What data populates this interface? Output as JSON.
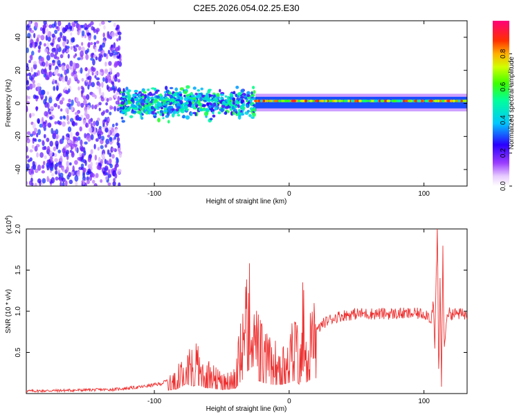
{
  "title": "C2E5.2026.054.02.25.E30",
  "chart_data": [
    {
      "type": "heatmap",
      "name": "spectrogram",
      "xlabel": "Height of straight line (km)",
      "ylabel": "Frequency (Hz)",
      "xlim": [
        -195,
        132
      ],
      "ylim": [
        -50,
        50
      ],
      "xticks": [
        -100,
        0,
        100
      ],
      "yticks": [
        -40,
        -20,
        0,
        20,
        40
      ],
      "grid": false,
      "colorbar": {
        "label": "Normalized spectral amplitude",
        "range": [
          0,
          1
        ],
        "ticks": [
          "0.0",
          "0.2",
          "0.4",
          "0.6",
          "0.8"
        ],
        "tick_values": [
          0,
          0.2,
          0.4,
          0.6,
          0.8
        ]
      },
      "description_segments": [
        {
          "x_range": [
            -195,
            -125
          ],
          "freq_spread": [
            -50,
            50
          ],
          "amplitude": [
            0.05,
            0.3
          ],
          "pattern": "scattered noise"
        },
        {
          "x_range": [
            -125,
            -25
          ],
          "freq_spread": [
            -12,
            12
          ],
          "amplitude": [
            0.2,
            0.6
          ],
          "pattern": "clustered blobs"
        },
        {
          "x_range": [
            -25,
            132
          ],
          "freq_center": 1.5,
          "freq_spread": [
            -3,
            4
          ],
          "amplitude": [
            0.4,
            0.95
          ],
          "pattern": "narrow line"
        }
      ]
    },
    {
      "type": "line",
      "name": "snr",
      "xlabel": "Height of straight line (km)",
      "ylabel": "SNR (10 * v/v)",
      "y_multiplier_label": "(x10",
      "y_multiplier_exp": "4",
      "y_multiplier_close": ")",
      "xlim": [
        -195,
        132
      ],
      "ylim": [
        0,
        20000
      ],
      "xticks": [
        -100,
        0,
        100
      ],
      "yticks": [
        5000,
        10000,
        15000,
        20000
      ],
      "ytick_labels": [
        "0.5",
        "1.0",
        "1.5",
        "2.0"
      ],
      "color": "#ee3030",
      "series": [
        {
          "name": "SNR",
          "x": [
            -195,
            -160,
            -130,
            -110,
            -95,
            -85,
            -80,
            -77,
            -72,
            -68,
            -62,
            -58,
            -55,
            -50,
            -45,
            -40,
            -37,
            -33,
            -30,
            -28,
            -25,
            -20,
            -15,
            -10,
            -5,
            0,
            5,
            8,
            10,
            12,
            15,
            20,
            25,
            30,
            35,
            40,
            45,
            50,
            60,
            80,
            90,
            95,
            100,
            103,
            105,
            107,
            108,
            109,
            110,
            111,
            112,
            113,
            114,
            115,
            117,
            120,
            125,
            132
          ],
          "y": [
            300,
            400,
            500,
            800,
            1200,
            2000,
            3000,
            4800,
            3500,
            4200,
            2800,
            2600,
            2200,
            1800,
            2000,
            2500,
            5000,
            8000,
            12000,
            6000,
            7000,
            5500,
            4500,
            4200,
            4500,
            5200,
            6500,
            4000,
            12300,
            5000,
            6500,
            7500,
            8500,
            9000,
            9300,
            9500,
            9600,
            9700,
            9700,
            9700,
            9700,
            9700,
            9700,
            9600,
            8800,
            11000,
            5000,
            13500,
            20000,
            1000,
            14500,
            800,
            18000,
            5000,
            9800,
            9700,
            9700,
            9600
          ]
        }
      ]
    }
  ]
}
